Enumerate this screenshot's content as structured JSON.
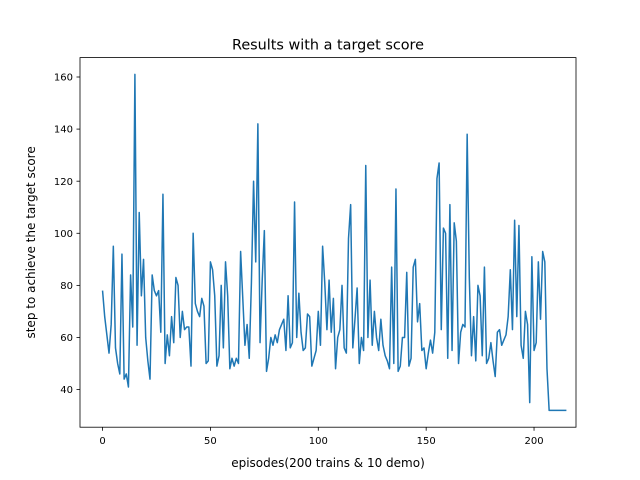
{
  "chart_data": {
    "type": "line",
    "title": "Results with a target score",
    "xlabel": "episodes(200 trains & 10 demo)",
    "ylabel": "step to achieve the target score",
    "xlim": [
      -10.45,
      219.45
    ],
    "ylim": [
      25.55,
      167.45
    ],
    "xticks": [
      0,
      50,
      100,
      150,
      200
    ],
    "yticks": [
      40,
      60,
      80,
      100,
      120,
      140,
      160
    ],
    "grid": false,
    "line_color": "#1f77b4",
    "x_start": 0,
    "x_step": 1,
    "values": [
      78,
      68,
      61,
      54,
      65,
      95,
      56,
      50,
      46,
      92,
      44,
      46,
      41,
      84,
      64,
      161,
      57,
      108,
      76,
      90,
      60,
      51,
      44,
      84,
      78,
      76,
      78,
      62,
      115,
      50,
      61,
      53,
      68,
      58,
      83,
      80,
      60,
      70,
      63,
      64,
      64,
      49,
      100,
      73,
      70,
      68,
      75,
      72,
      50,
      51,
      89,
      86,
      76,
      49,
      53,
      80,
      56,
      89,
      76,
      48,
      52,
      49,
      52,
      50,
      93,
      75,
      57,
      65,
      52,
      81,
      120,
      89,
      142,
      58,
      82,
      101,
      47,
      52,
      60,
      57,
      61,
      58,
      63,
      65,
      67,
      55,
      76,
      56,
      58,
      112,
      60,
      77,
      62,
      55,
      56,
      69,
      68,
      49,
      52,
      55,
      70,
      57,
      95,
      81,
      63,
      82,
      62,
      75,
      48,
      60,
      63,
      80,
      56,
      54,
      98,
      111,
      56,
      67,
      79,
      50,
      60,
      55,
      126,
      60,
      82,
      57,
      70,
      60,
      55,
      67,
      57,
      53,
      51,
      48,
      87,
      50,
      117,
      47,
      49,
      60,
      60,
      85,
      49,
      52,
      87,
      90,
      66,
      73,
      55,
      56,
      48,
      54,
      59,
      54,
      62,
      121,
      127,
      63,
      102,
      100,
      52,
      111,
      55,
      104,
      97,
      50,
      62,
      65,
      64,
      138,
      83,
      53,
      68,
      51,
      80,
      76,
      53,
      87,
      50,
      52,
      58,
      51,
      45,
      62,
      63,
      57,
      59,
      61,
      68,
      86,
      63,
      105,
      68,
      103,
      57,
      52,
      70,
      65,
      35,
      91,
      55,
      58,
      89,
      67,
      93,
      89,
      48,
      32,
      32,
      32,
      32,
      32,
      32,
      32,
      32,
      32
    ]
  }
}
